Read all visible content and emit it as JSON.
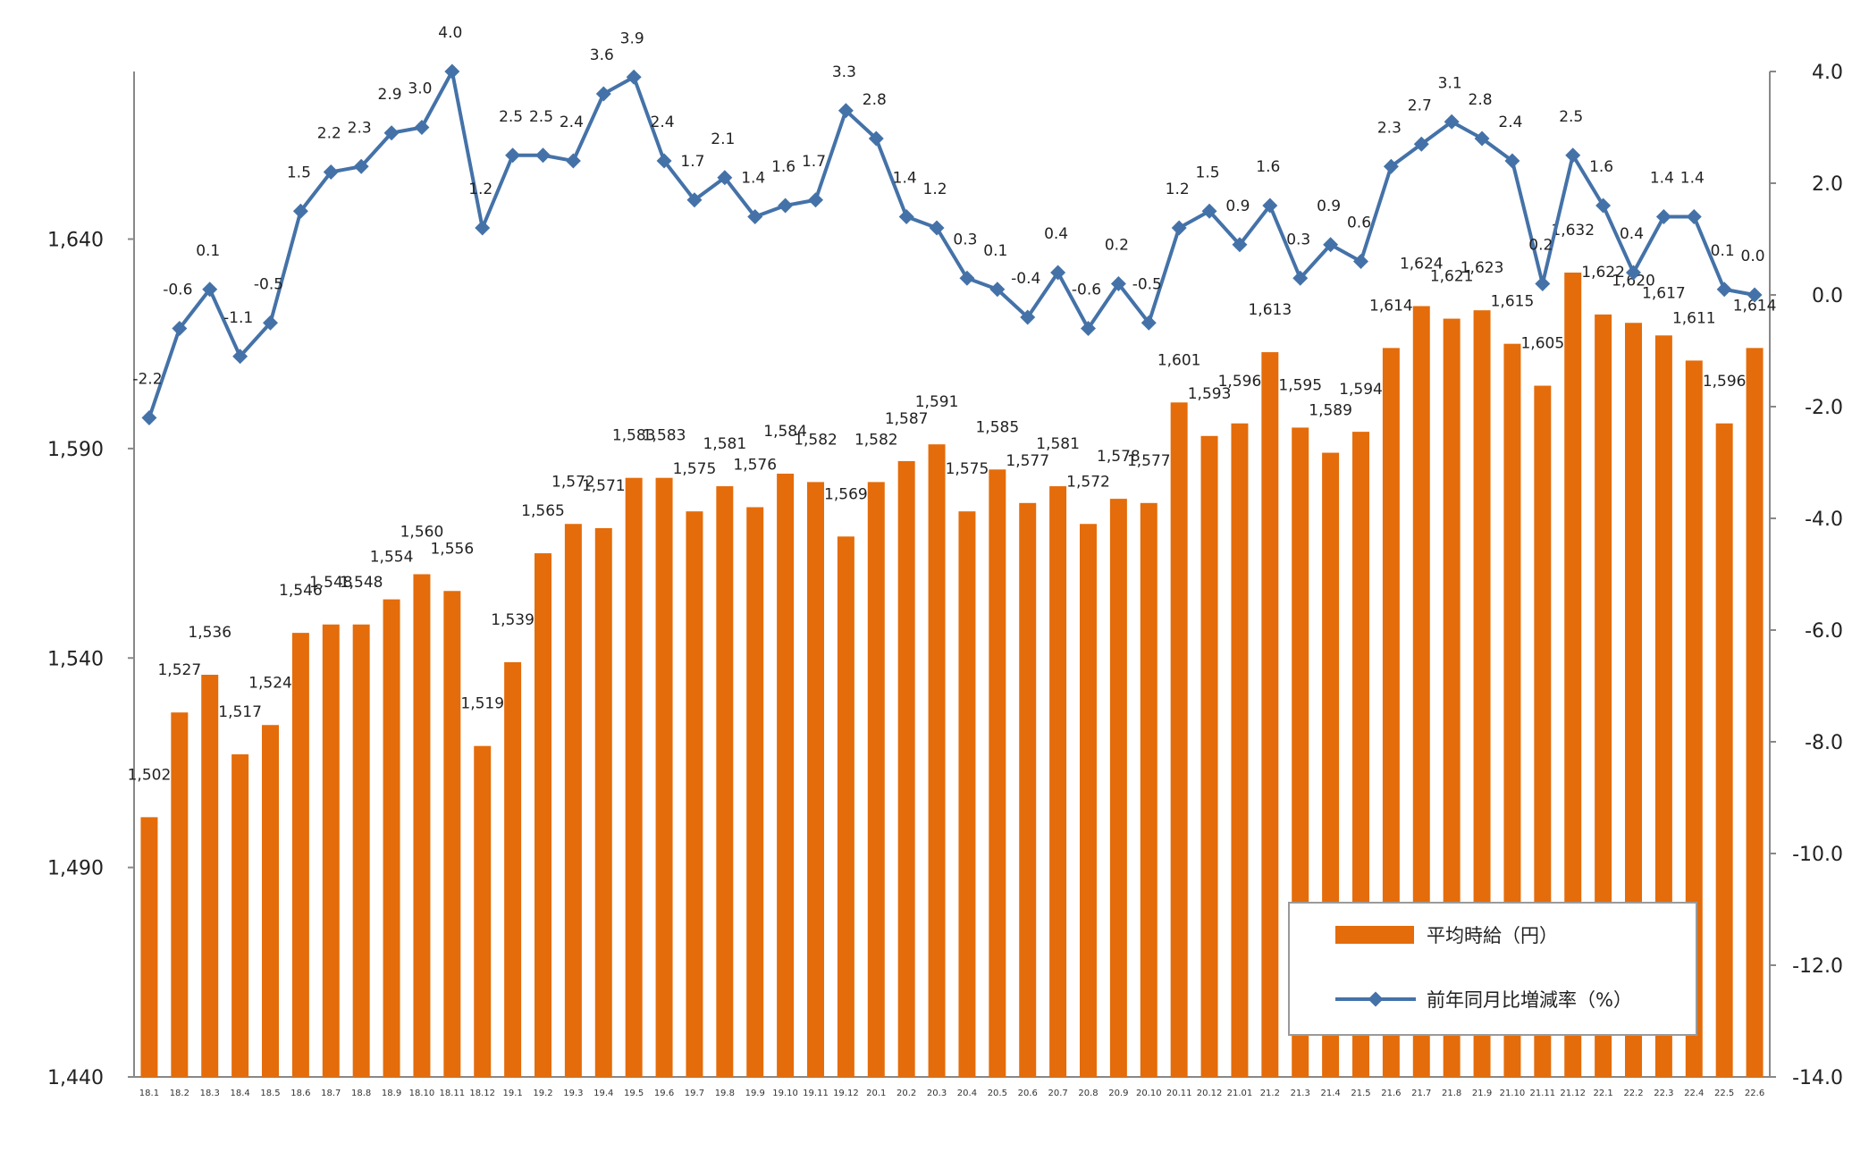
{
  "chart_data": {
    "type": "bar+line",
    "categories": [
      "18.1",
      "18.2",
      "18.3",
      "18.4",
      "18.5",
      "18.6",
      "18.7",
      "18.8",
      "18.9",
      "18.10",
      "18.11",
      "18.12",
      "19.1",
      "19.2",
      "19.3",
      "19.4",
      "19.5",
      "19.6",
      "19.7",
      "19.8",
      "19.9",
      "19.10",
      "19.11",
      "19.12",
      "20.1",
      "20.2",
      "20.3",
      "20.4",
      "20.5",
      "20.6",
      "20.7",
      "20.8",
      "20.9",
      "20.10",
      "20.11",
      "20.12",
      "21.01",
      "21.2",
      "21.3",
      "21.4",
      "21.5",
      "21.6",
      "21.7",
      "21.8",
      "21.9",
      "21.10",
      "21.11",
      "21.12",
      "22.1",
      "22.2",
      "22.3",
      "22.4",
      "22.5",
      "22.6"
    ],
    "series": [
      {
        "name": "平均時給（円）",
        "type": "bar",
        "axis": "left",
        "color": "#E46C0A",
        "values": [
          1502,
          1527,
          1536,
          1517,
          1524,
          1546,
          1548,
          1548,
          1554,
          1560,
          1556,
          1519,
          1539,
          1565,
          1572,
          1571,
          1583,
          1583,
          1575,
          1581,
          1576,
          1584,
          1582,
          1569,
          1582,
          1587,
          1591,
          1575,
          1585,
          1577,
          1581,
          1572,
          1578,
          1577,
          1601,
          1593,
          1596,
          1613,
          1595,
          1589,
          1594,
          1614,
          1624,
          1621,
          1623,
          1615,
          1605,
          1632,
          1622,
          1620,
          1617,
          1611,
          1596,
          1614
        ],
        "labels": [
          "1,502",
          "1,527",
          "1,536",
          "1,517",
          "1,524",
          "1,546",
          "1,548",
          "1,548",
          "1,554",
          "1,560",
          "1,556",
          "1,519",
          "1,539",
          "1,565",
          "1,572",
          "1,571",
          "1,583",
          "1,583",
          "1,575",
          "1,581",
          "1,576",
          "1,584",
          "1,582",
          "1,569",
          "1,582",
          "1,587",
          "1,591",
          "1,575",
          "1,585",
          "1,577",
          "1,581",
          "1,572",
          "1,578",
          "1,577",
          "1,601",
          "1,593",
          "1,596",
          "1,613",
          "1,595",
          "1,589",
          "1,594",
          "1,614",
          "1,624",
          "1,621",
          "1,623",
          "1,615",
          "1,605",
          "1,632",
          "1,622",
          "1,620",
          "1,617",
          "1,611",
          "1,596",
          "1,614"
        ]
      },
      {
        "name": "前年同月比増減率（%）",
        "type": "line",
        "axis": "right",
        "color": "#4472A8",
        "negative_label_color": "#FF0000",
        "values": [
          -2.2,
          -0.6,
          0.1,
          -1.1,
          -0.5,
          1.5,
          2.2,
          2.3,
          2.9,
          3.0,
          4.0,
          1.2,
          2.5,
          2.5,
          2.4,
          3.6,
          3.9,
          2.4,
          1.7,
          2.1,
          1.4,
          1.6,
          1.7,
          3.3,
          2.8,
          1.4,
          1.2,
          0.3,
          0.1,
          -0.4,
          0.4,
          -0.6,
          0.2,
          -0.5,
          1.2,
          1.5,
          0.9,
          1.6,
          0.3,
          0.9,
          0.6,
          2.3,
          2.7,
          3.1,
          2.8,
          2.4,
          0.2,
          2.5,
          1.6,
          0.4,
          1.4,
          1.4,
          0.1,
          0.0
        ],
        "labels": [
          "-2.2",
          "-0.6",
          "0.1",
          "-1.1",
          "-0.5",
          "1.5",
          "2.2",
          "2.3",
          "2.9",
          "3.0",
          "4.0",
          "1.2",
          "2.5",
          "2.5",
          "2.4",
          "3.6",
          "3.9",
          "2.4",
          "1.7",
          "2.1",
          "1.4",
          "1.6",
          "1.7",
          "3.3",
          "2.8",
          "1.4",
          "1.2",
          "0.3",
          "0.1",
          "-0.4",
          "0.4",
          "-0.6",
          "0.2",
          "-0.5",
          "1.2",
          "1.5",
          "0.9",
          "1.6",
          "0.3",
          "0.9",
          "0.6",
          "2.3",
          "2.7",
          "3.1",
          "2.8",
          "2.4",
          "0.2",
          "2.5",
          "1.6",
          "0.4",
          "1.4",
          "1.4",
          "0.1",
          "0.0"
        ],
        "red_label_indices": [
          29,
          31,
          33
        ]
      }
    ],
    "left_axis": {
      "ylim": [
        1440,
        1680
      ],
      "ticks": [
        1440,
        1490,
        1540,
        1590,
        1640
      ],
      "tick_labels": [
        "1,440",
        "1,490",
        "1,540",
        "1,590",
        "1,640"
      ]
    },
    "right_axis": {
      "ylim": [
        -14.0,
        4.0
      ],
      "ticks": [
        4,
        2,
        0,
        -2,
        -4,
        -6,
        -8,
        -10,
        -12,
        -14
      ],
      "tick_labels": [
        "4.0",
        "2.0",
        "0.0",
        "-2.0",
        "-4.0",
        "-6.0",
        "-8.0",
        "-10.0",
        "-12.0",
        "-14.0"
      ]
    },
    "grid": false,
    "legend_position": "bottom-right"
  }
}
